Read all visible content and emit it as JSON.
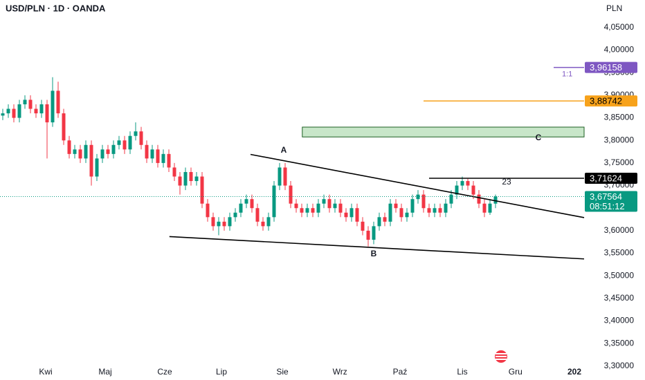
{
  "chart_data": {
    "type": "candlestick",
    "title": "USD/PLN · 1D · OANDA",
    "y_axis_label": "PLN",
    "up_color": "#089981",
    "down_color": "#f23645",
    "xlim": [
      -0.5,
      105
    ],
    "xticks": [
      {
        "value": 7.75,
        "label": "Kwi"
      },
      {
        "value": 18.5,
        "label": "Maj"
      },
      {
        "value": 29.25,
        "label": "Cze"
      },
      {
        "value": 39.5,
        "label": "Lip"
      },
      {
        "value": 50.5,
        "label": "Sie"
      },
      {
        "value": 60.9,
        "label": "Wrz"
      },
      {
        "value": 71.75,
        "label": "Paź"
      },
      {
        "value": 83,
        "label": "Lis"
      },
      {
        "value": 92.6,
        "label": "Gru"
      },
      {
        "value": 103.25,
        "label": "202"
      }
    ],
    "ylim": [
      3.2968,
      4.0667
    ],
    "yticks": [
      {
        "value": 3.3,
        "label": "3,30000"
      },
      {
        "value": 3.35,
        "label": "3,35000"
      },
      {
        "value": 3.4,
        "label": "3,40000"
      },
      {
        "value": 3.45,
        "label": "3,45000"
      },
      {
        "value": 3.5,
        "label": "3,50000"
      },
      {
        "value": 3.55,
        "label": "3,55000"
      },
      {
        "value": 3.6,
        "label": "3,60000"
      },
      {
        "value": 3.65,
        "label": "3,65000"
      },
      {
        "value": 3.7,
        "label": "3,70000"
      },
      {
        "value": 3.75,
        "label": "3,75000"
      },
      {
        "value": 3.8,
        "label": "3,80000"
      },
      {
        "value": 3.85,
        "label": "3,85000"
      },
      {
        "value": 3.9,
        "label": "3,90000"
      },
      {
        "value": 3.95,
        "label": "3,95000"
      },
      {
        "value": 4.0,
        "label": "4,00000"
      },
      {
        "value": 4.05,
        "label": "4,05000"
      }
    ],
    "open": [
      3.855,
      3.86,
      3.87,
      3.85,
      3.88,
      3.89,
      3.87,
      3.86,
      3.88,
      3.84,
      3.91,
      3.86,
      3.8,
      3.77,
      3.78,
      3.76,
      3.79,
      3.72,
      3.76,
      3.78,
      3.77,
      3.79,
      3.8,
      3.78,
      3.81,
      3.82,
      3.79,
      3.76,
      3.78,
      3.75,
      3.77,
      3.74,
      3.72,
      3.7,
      3.73,
      3.71,
      3.72,
      3.66,
      3.63,
      3.61,
      3.62,
      3.61,
      3.63,
      3.64,
      3.66,
      3.67,
      3.65,
      3.62,
      3.61,
      3.63,
      3.7,
      3.74,
      3.7,
      3.66,
      3.65,
      3.64,
      3.65,
      3.64,
      3.66,
      3.67,
      3.65,
      3.66,
      3.64,
      3.63,
      3.65,
      3.62,
      3.6,
      3.58,
      3.61,
      3.63,
      3.62,
      3.66,
      3.65,
      3.63,
      3.64,
      3.67,
      3.68,
      3.65,
      3.64,
      3.65,
      3.64,
      3.66,
      3.68,
      3.7,
      3.71,
      3.7,
      3.68,
      3.66,
      3.64,
      3.66
    ],
    "high": [
      3.87,
      3.88,
      3.88,
      3.89,
      3.9,
      3.9,
      3.88,
      3.89,
      3.89,
      3.94,
      3.93,
      3.87,
      3.81,
      3.79,
      3.79,
      3.8,
      3.8,
      3.77,
      3.79,
      3.79,
      3.8,
      3.81,
      3.81,
      3.82,
      3.84,
      3.83,
      3.8,
      3.79,
      3.79,
      3.78,
      3.78,
      3.75,
      3.73,
      3.74,
      3.74,
      3.73,
      3.73,
      3.67,
      3.64,
      3.63,
      3.63,
      3.64,
      3.65,
      3.67,
      3.68,
      3.68,
      3.66,
      3.63,
      3.64,
      3.71,
      3.75,
      3.75,
      3.71,
      3.67,
      3.66,
      3.66,
      3.66,
      3.67,
      3.68,
      3.68,
      3.67,
      3.67,
      3.65,
      3.66,
      3.66,
      3.63,
      3.61,
      3.62,
      3.64,
      3.64,
      3.67,
      3.67,
      3.66,
      3.65,
      3.68,
      3.69,
      3.69,
      3.66,
      3.66,
      3.66,
      3.67,
      3.69,
      3.71,
      3.72,
      3.715,
      3.71,
      3.69,
      3.67,
      3.67,
      3.68
    ],
    "low": [
      3.845,
      3.85,
      3.84,
      3.84,
      3.87,
      3.86,
      3.85,
      3.85,
      3.76,
      3.83,
      3.85,
      3.79,
      3.76,
      3.76,
      3.75,
      3.75,
      3.7,
      3.71,
      3.75,
      3.76,
      3.76,
      3.78,
      3.77,
      3.77,
      3.8,
      3.78,
      3.75,
      3.75,
      3.74,
      3.74,
      3.73,
      3.71,
      3.68,
      3.69,
      3.7,
      3.7,
      3.65,
      3.62,
      3.6,
      3.59,
      3.6,
      3.6,
      3.62,
      3.63,
      3.65,
      3.64,
      3.61,
      3.6,
      3.6,
      3.62,
      3.69,
      3.69,
      3.65,
      3.64,
      3.63,
      3.63,
      3.63,
      3.63,
      3.65,
      3.64,
      3.64,
      3.63,
      3.62,
      3.62,
      3.61,
      3.59,
      3.565,
      3.57,
      3.6,
      3.61,
      3.61,
      3.64,
      3.62,
      3.62,
      3.63,
      3.66,
      3.64,
      3.63,
      3.63,
      3.63,
      3.63,
      3.65,
      3.67,
      3.69,
      3.69,
      3.67,
      3.65,
      3.63,
      3.635,
      3.65
    ],
    "close": [
      3.86,
      3.87,
      3.85,
      3.88,
      3.89,
      3.87,
      3.86,
      3.88,
      3.84,
      3.91,
      3.86,
      3.8,
      3.77,
      3.78,
      3.76,
      3.79,
      3.72,
      3.76,
      3.78,
      3.77,
      3.79,
      3.8,
      3.78,
      3.81,
      3.82,
      3.79,
      3.76,
      3.78,
      3.75,
      3.77,
      3.74,
      3.72,
      3.7,
      3.73,
      3.71,
      3.72,
      3.66,
      3.63,
      3.61,
      3.62,
      3.61,
      3.63,
      3.64,
      3.66,
      3.67,
      3.65,
      3.62,
      3.61,
      3.63,
      3.7,
      3.74,
      3.7,
      3.66,
      3.65,
      3.64,
      3.65,
      3.64,
      3.66,
      3.67,
      3.65,
      3.66,
      3.64,
      3.63,
      3.65,
      3.62,
      3.6,
      3.58,
      3.61,
      3.63,
      3.62,
      3.66,
      3.65,
      3.63,
      3.64,
      3.67,
      3.68,
      3.65,
      3.64,
      3.65,
      3.64,
      3.66,
      3.68,
      3.7,
      3.71,
      3.7,
      3.68,
      3.66,
      3.64,
      3.66,
      3.676
    ],
    "trend_lines": [
      {
        "x": [
          44.75,
          105
        ],
        "y": [
          3.769,
          3.629
        ],
        "color": "#000000"
      },
      {
        "x": [
          30.1,
          105
        ],
        "y": [
          3.587,
          3.5375
        ],
        "color": "#000000"
      }
    ],
    "zone": {
      "from": 54.1,
      "top": 3.8295,
      "bottom": 3.8077,
      "color": "#c8e6c9",
      "border": "#1b5e20"
    },
    "price_levels": [
      {
        "value": 3.96158,
        "label": "3,96158",
        "color": "#7e57c2",
        "text_color": "#ffffff",
        "from": 99.5,
        "note": "1:1"
      },
      {
        "value": 3.88742,
        "label": "3,88742",
        "color": "#f7a21b",
        "text_color": "#000000",
        "from": 76
      },
      {
        "value": 3.71624,
        "label": "3,71624",
        "color": "#000000",
        "text_color": "#ffffff",
        "from": 77
      }
    ],
    "current_price": {
      "value": 3.67564,
      "label": "3,67564",
      "countdown": "08:51:12",
      "color": "#089981"
    },
    "annotations": [
      "A",
      "B",
      "C",
      "23"
    ]
  }
}
